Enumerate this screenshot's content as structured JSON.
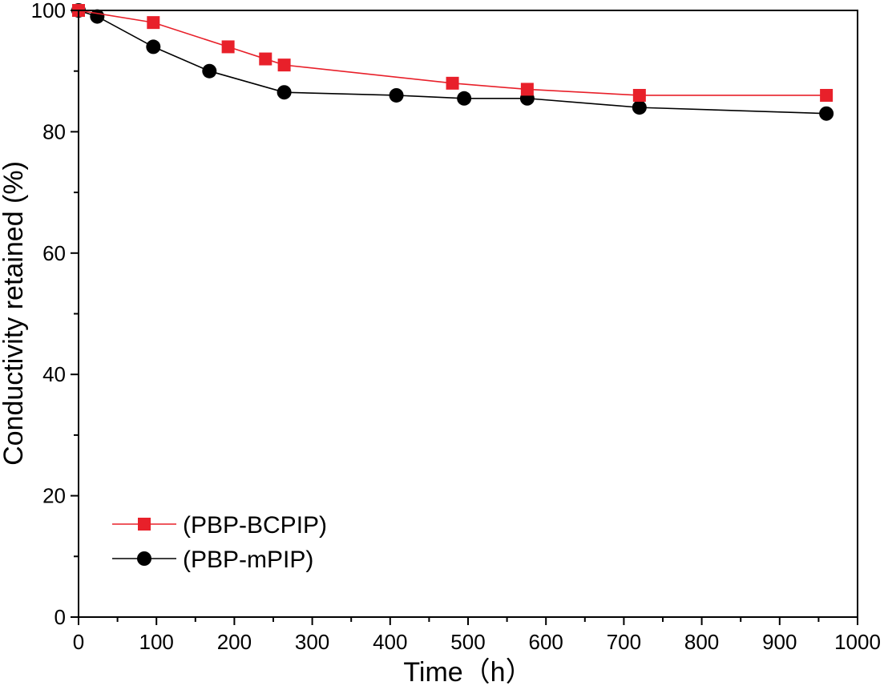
{
  "chart_data": {
    "type": "line",
    "title": "",
    "xlabel": "Time（h）",
    "ylabel": "Conductivity retained (%)",
    "xlim": [
      0,
      1000
    ],
    "ylim": [
      0,
      100
    ],
    "xticks": [
      0,
      100,
      200,
      300,
      400,
      500,
      600,
      700,
      800,
      900,
      1000
    ],
    "yticks": [
      0,
      20,
      40,
      60,
      80,
      100
    ],
    "grid": false,
    "legend_position": "bottom-left",
    "series": [
      {
        "name": "(PBP-BCPIP)",
        "color": "#e8202a",
        "marker": "square",
        "x": [
          0,
          96,
          192,
          240,
          264,
          480,
          576,
          720,
          960
        ],
        "y": [
          100,
          98,
          94,
          92,
          91,
          88,
          87,
          86,
          86
        ]
      },
      {
        "name": "(PBP-mPIP)",
        "color": "#000000",
        "marker": "circle",
        "x": [
          0,
          24,
          96,
          168,
          264,
          408,
          495,
          576,
          720,
          960
        ],
        "y": [
          100,
          99,
          94,
          90,
          86.5,
          86,
          85.5,
          85.5,
          84,
          83
        ]
      }
    ]
  }
}
